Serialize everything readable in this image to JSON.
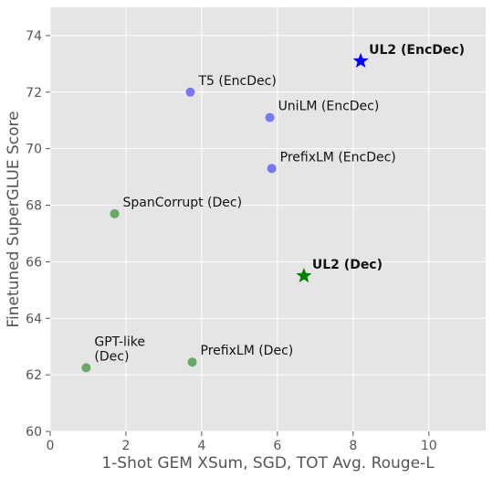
{
  "chart_data": {
    "type": "scatter",
    "title": "",
    "xlabel": "1-Shot GEM XSum, SGD, TOT Avg. Rouge-L",
    "ylabel": "Finetuned SuperGLUE Score",
    "xlim": [
      0,
      11.5
    ],
    "ylim": [
      60,
      75
    ],
    "xticks": [
      0,
      2,
      4,
      6,
      8,
      10
    ],
    "yticks": [
      60,
      62,
      64,
      66,
      68,
      70,
      72,
      74
    ],
    "grid": true,
    "colors": {
      "background": "#e5e5e5",
      "grid": "#ffffff",
      "encdec_point": "#7777ee",
      "dec_point": "#66aa66",
      "ul2_encdec_star": "#0000ff",
      "ul2_dec_star": "#008000"
    },
    "points": [
      {
        "lines": [
          "T5 (EncDec)"
        ],
        "x": 3.7,
        "y": 72.0,
        "group": "encdec",
        "marker": "circle",
        "bold": false
      },
      {
        "lines": [
          "UniLM (EncDec)"
        ],
        "x": 5.8,
        "y": 71.1,
        "group": "encdec",
        "marker": "circle",
        "bold": false
      },
      {
        "lines": [
          "PrefixLM (EncDec)"
        ],
        "x": 5.85,
        "y": 69.3,
        "group": "encdec",
        "marker": "circle",
        "bold": false
      },
      {
        "lines": [
          "UL2 (EncDec)"
        ],
        "x": 8.2,
        "y": 73.1,
        "group": "encdec",
        "marker": "star",
        "bold": true
      },
      {
        "lines": [
          "SpanCorrupt (Dec)"
        ],
        "x": 1.7,
        "y": 67.7,
        "group": "dec",
        "marker": "circle",
        "bold": false
      },
      {
        "lines": [
          "UL2 (Dec)"
        ],
        "x": 6.7,
        "y": 65.5,
        "group": "dec",
        "marker": "star",
        "bold": true
      },
      {
        "lines": [
          "GPT-like",
          "(Dec)"
        ],
        "x": 0.95,
        "y": 62.25,
        "group": "dec",
        "marker": "circle",
        "bold": false
      },
      {
        "lines": [
          "PrefixLM (Dec)"
        ],
        "x": 3.75,
        "y": 62.45,
        "group": "dec",
        "marker": "circle",
        "bold": false
      }
    ]
  }
}
